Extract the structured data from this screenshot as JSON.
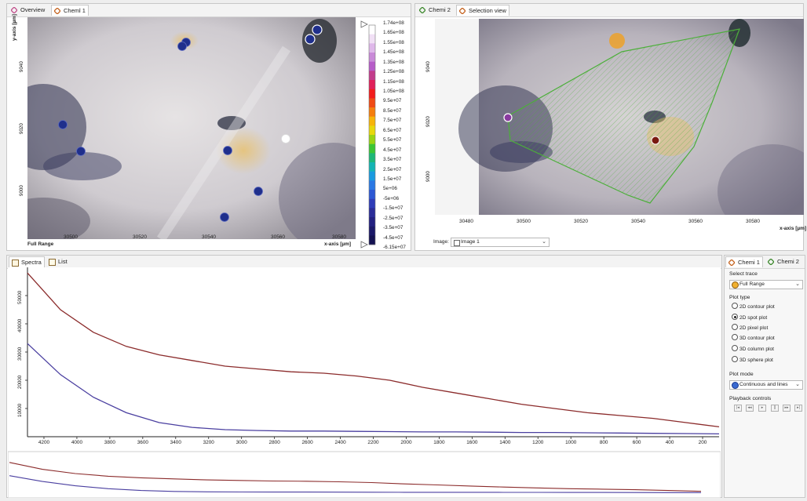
{
  "left_panel": {
    "tabs": [
      {
        "label": "Overview",
        "icon": "diamond-pink-icon"
      },
      {
        "label": "Cheml 1",
        "icon": "diamond-orange-icon"
      }
    ],
    "y_axis_label": "y-axis [µm]",
    "y_ticks": [
      "9040",
      "9020",
      "9000"
    ],
    "x_ticks": [
      "30500",
      "30520",
      "30540",
      "30560",
      "30580"
    ],
    "x_axis_label": "x-axis [µm]",
    "corner_label": "Full Range",
    "colorbar_labels": [
      "1.74e+08",
      "1.65e+08",
      "1.55e+08",
      "1.45e+08",
      "1.35e+08",
      "1.25e+08",
      "1.15e+08",
      "1.05e+08",
      "9.5e+07",
      "8.5e+07",
      "7.5e+07",
      "6.5e+07",
      "5.5e+07",
      "4.5e+07",
      "3.5e+07",
      "2.5e+07",
      "1.5e+07",
      "5e+06",
      "-5e+06",
      "-1.5e+07",
      "-2.5e+07",
      "-3.5e+07",
      "-4.5e+07",
      "-6.15e+07"
    ],
    "colorbar_colors": [
      "#ffffff",
      "#f1e0f5",
      "#dfb8ea",
      "#c98ad8",
      "#b65cc8",
      "#c23c8c",
      "#e0205a",
      "#f21c1c",
      "#f04a14",
      "#f57e0e",
      "#f7b40a",
      "#e8d80c",
      "#9ad414",
      "#3cc634",
      "#1eb878",
      "#14b4b4",
      "#1a9ae0",
      "#2a78e4",
      "#2c58d4",
      "#2e3cb8",
      "#2a2c98",
      "#222080",
      "#1a1868",
      "#141252"
    ]
  },
  "right_panel": {
    "tabs": [
      {
        "label": "Chemi 2",
        "icon": "diamond-green-icon"
      },
      {
        "label": "Selection view",
        "icon": "diamond-orange-icon"
      }
    ],
    "y_ticks": [
      "9040",
      "9020",
      "9000"
    ],
    "x_ticks": [
      "30480",
      "30500",
      "30520",
      "30540",
      "30560",
      "30580"
    ],
    "x_axis_label": "x-axis [µm]",
    "image_label": "Image:",
    "image_value": "Image 1"
  },
  "spectra_panel": {
    "tabs": [
      {
        "label": "Spectra",
        "icon": "spectra-icon"
      },
      {
        "label": "List",
        "icon": "list-icon"
      }
    ],
    "y_ticks": [
      "50000",
      "40000",
      "30000",
      "20000",
      "10000"
    ],
    "x_ticks": [
      "4200",
      "4000",
      "3800",
      "3600",
      "3400",
      "3200",
      "3000",
      "2800",
      "2600",
      "2400",
      "2200",
      "2000",
      "1800",
      "1600",
      "1400",
      "1200",
      "1000",
      "800",
      "600",
      "400",
      "200"
    ],
    "chart_data": {
      "type": "line",
      "xlim": [
        4300,
        100
      ],
      "ylim": [
        0,
        60000
      ],
      "series": [
        {
          "color": "#8b2b2b",
          "x": [
            4300,
            4100,
            3900,
            3700,
            3500,
            3300,
            3100,
            2900,
            2700,
            2500,
            2300,
            2100,
            1900,
            1700,
            1500,
            1300,
            1100,
            900,
            700,
            500,
            300,
            100
          ],
          "y": [
            58000,
            45000,
            37000,
            32000,
            29000,
            27000,
            25000,
            24000,
            23000,
            22500,
            21500,
            20000,
            17500,
            15500,
            13500,
            11500,
            10000,
            8500,
            7500,
            6500,
            5000,
            3500
          ]
        },
        {
          "color": "#4a3fa0",
          "x": [
            4300,
            4100,
            3900,
            3700,
            3500,
            3300,
            3100,
            2900,
            2700,
            2500,
            2300,
            2100,
            1900,
            1700,
            1500,
            1300,
            1100,
            900,
            700,
            500,
            300,
            100
          ],
          "y": [
            33000,
            22000,
            14000,
            8500,
            5000,
            3300,
            2500,
            2200,
            2000,
            2000,
            1900,
            1800,
            1700,
            1700,
            1600,
            1500,
            1500,
            1400,
            1300,
            1200,
            1100,
            1000
          ]
        }
      ]
    }
  },
  "side_panel": {
    "tabs": [
      {
        "label": "Chemi 1",
        "icon": "diamond-orange-icon"
      },
      {
        "label": "Chemi 2",
        "icon": "diamond-green-icon"
      }
    ],
    "select_trace_label": "Select trace",
    "select_trace_value": "Full Range",
    "plot_type_label": "Plot type",
    "plot_types": [
      {
        "label": "2D contour plot",
        "selected": false
      },
      {
        "label": "2D spot plot",
        "selected": true
      },
      {
        "label": "2D pixel plot",
        "selected": false
      },
      {
        "label": "3D contour plot",
        "selected": false
      },
      {
        "label": "3D column plot",
        "selected": false
      },
      {
        "label": "3D sphere plot",
        "selected": false
      }
    ],
    "plot_mode_label": "Plot mode",
    "plot_mode_value": "Continuous and lines",
    "playback_label": "Playback controls",
    "playback_buttons": [
      "first-icon",
      "prev-fast-icon",
      "play-icon",
      "pause-icon",
      "next-fast-icon",
      "last-icon"
    ]
  }
}
